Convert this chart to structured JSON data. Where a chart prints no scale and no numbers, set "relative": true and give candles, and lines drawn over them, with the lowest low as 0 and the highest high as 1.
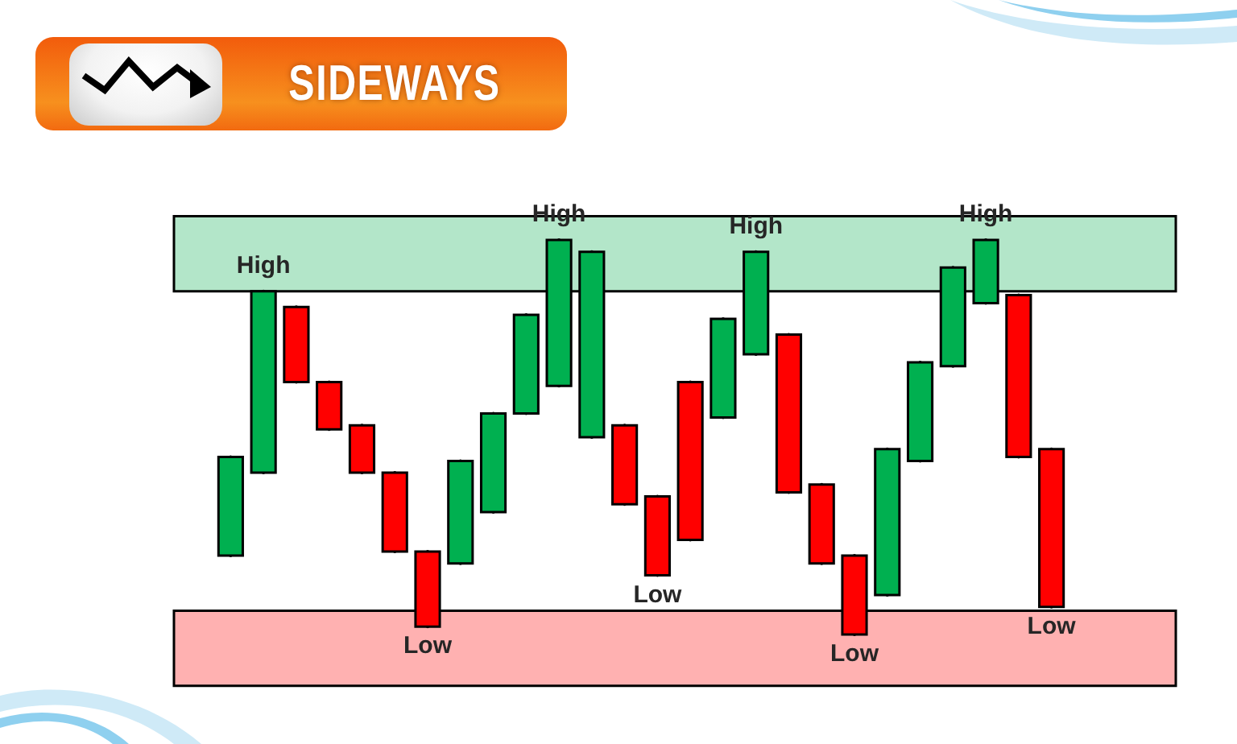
{
  "chart_data": {
    "type": "candlestick",
    "title": "SIDEWAYS",
    "relative": true,
    "categories": [
      null,
      null,
      null,
      null,
      null,
      null,
      null,
      null,
      null,
      null,
      null,
      null,
      null,
      null,
      null,
      null,
      null,
      null,
      null,
      null,
      null,
      null,
      null,
      null,
      null,
      null
    ],
    "ohlc": [
      [
        0.2,
        0.45,
        0.2,
        0.45
      ],
      [
        0.41,
        0.87,
        0.41,
        0.87
      ],
      [
        0.83,
        0.83,
        0.64,
        0.64
      ],
      [
        0.64,
        0.64,
        0.52,
        0.52
      ],
      [
        0.53,
        0.53,
        0.41,
        0.41
      ],
      [
        0.41,
        0.41,
        0.21,
        0.21
      ],
      [
        0.21,
        0.21,
        0.02,
        0.02
      ],
      [
        0.18,
        0.44,
        0.18,
        0.44
      ],
      [
        0.31,
        0.56,
        0.31,
        0.56
      ],
      [
        0.56,
        0.81,
        0.56,
        0.81
      ],
      [
        0.63,
        1,
        0.63,
        1
      ],
      [
        0.5,
        0.97,
        0.5,
        0.97
      ],
      [
        0.53,
        0.53,
        0.33,
        0.33
      ],
      [
        0.35,
        0.35,
        0.15,
        0.15
      ],
      [
        0.64,
        0.64,
        0.24,
        0.24
      ],
      [
        0.55,
        0.8,
        0.55,
        0.8
      ],
      [
        0.71,
        0.97,
        0.71,
        0.97
      ],
      [
        0.76,
        0.76,
        0.36,
        0.36
      ],
      [
        0.38,
        0.38,
        0.18,
        0.18
      ],
      [
        0.2,
        0.2,
        0,
        0
      ],
      [
        0.1,
        0.47,
        0.1,
        0.47
      ],
      [
        0.44,
        0.69,
        0.44,
        0.69
      ],
      [
        0.68,
        0.93,
        0.68,
        0.93
      ],
      [
        0.84,
        1,
        0.84,
        1
      ],
      [
        0.86,
        0.86,
        0.45,
        0.45
      ],
      [
        0.47,
        0.47,
        0.07,
        0.07
      ]
    ],
    "colors": [
      "#00b050",
      "#00b050",
      "#ff0000",
      "#ff0000",
      "#ff0000",
      "#ff0000",
      "#ff0000",
      "#00b050",
      "#00b050",
      "#00b050",
      "#00b050",
      "#00b050",
      "#ff0000",
      "#ff0000",
      "#ff0000",
      "#00b050",
      "#00b050",
      "#ff0000",
      "#ff0000",
      "#ff0000",
      "#00b050",
      "#00b050",
      "#00b050",
      "#00b050",
      "#ff0000",
      "#ff0000"
    ],
    "bands": [
      {
        "axis": "y",
        "from": 0.87,
        "to": 1.06,
        "color": "#b3e6c9"
      },
      {
        "axis": "y",
        "from": -0.13,
        "to": 0.06,
        "color": "#ffb1b1"
      }
    ],
    "annotations": [
      {
        "text": "High",
        "y": 0.87
      },
      {
        "text": "Low",
        "y": 0.02
      },
      {
        "text": "High",
        "y": 1
      },
      {
        "text": "Low",
        "y": 0.15
      },
      {
        "text": "High",
        "y": 0.97
      },
      {
        "text": "Low",
        "y": 0
      },
      {
        "text": "High",
        "y": 1
      },
      {
        "text": "Low",
        "y": 0.07
      }
    ]
  }
}
